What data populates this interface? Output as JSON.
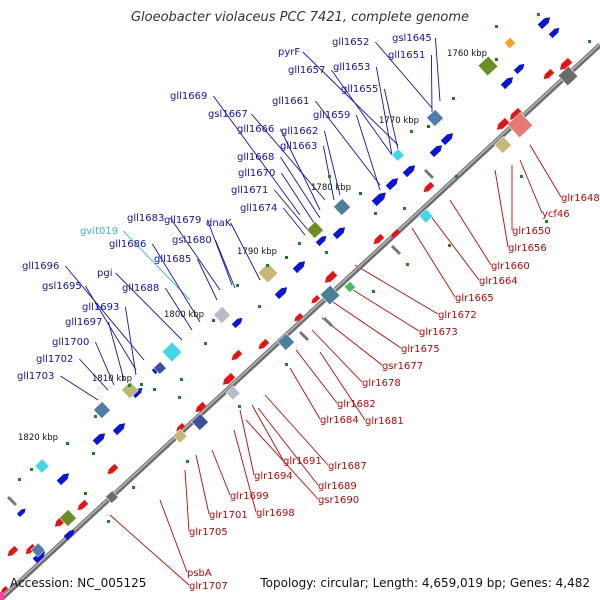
{
  "title": "Gloeobacter violaceus PCC 7421, complete genome",
  "footer": {
    "accession": "Accession: NC_005125",
    "summary": "Topology: circular; Length: 4,659,019 bp; Genes: 4,482"
  },
  "colors": {
    "blue_label": "#1010c8",
    "red_label": "#cc0000",
    "cyan_label": "#30b8e0",
    "forward_gene": "#0a14e0",
    "reverse_gene": "#ee1010",
    "backbone": "#808080"
  },
  "ticks": [
    "1760 kbp",
    "1770 kbp",
    "1780 kbp",
    "1790 kbp",
    "1800 kbp",
    "1810 kbp",
    "1820 kbp"
  ],
  "top_labels": [
    "gsl1645",
    "gll1652",
    "gll1651",
    "pyrF",
    "gll1657",
    "gll1653",
    "gll1655",
    "gll1669",
    "gll1661",
    "gsl1667",
    "gll1659",
    "gll1666",
    "gll1662",
    "gll1663",
    "gll1668",
    "gll1670",
    "gll1671",
    "gll1674",
    "gvit019",
    "gll1683",
    "gll1679",
    "dnaK",
    "gsl1680",
    "gll1686",
    "gll1685",
    "gll1696",
    "pgi",
    "gsl1695",
    "gll1688",
    "gll1693",
    "gll1697",
    "gll1700",
    "gll1702",
    "gll1703"
  ],
  "bottom_labels": [
    "glr1648",
    "ycf46",
    "glr1650",
    "glr1656",
    "glr1660",
    "glr1664",
    "glr1665",
    "glr1672",
    "glr1673",
    "glr1675",
    "gsr1677",
    "glr1678",
    "glr1682",
    "glr1684",
    "glr1681",
    "glr1687",
    "glr1691",
    "glr1694",
    "glr1689",
    "gsr1690",
    "glr1699",
    "glr1698",
    "glr1701",
    "glr1705",
    "psbA",
    "glr1707"
  ]
}
